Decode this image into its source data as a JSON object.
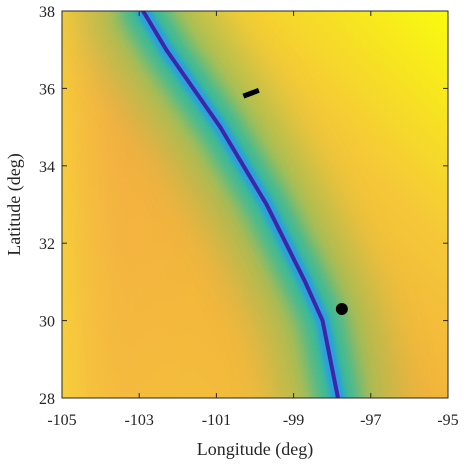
{
  "chart_data": {
    "type": "heatmap",
    "title": "",
    "xlabel": "Longitude (deg)",
    "ylabel": "Latitude (deg)",
    "xlim": [
      -105,
      -95
    ],
    "ylim": [
      28,
      38
    ],
    "xticks": [
      -105,
      -103,
      -101,
      -99,
      -97,
      -95
    ],
    "yticks": [
      28,
      30,
      32,
      34,
      36,
      38
    ],
    "x_tick_labels": [
      "-105",
      "-103",
      "-101",
      "-99",
      "-97",
      "-95"
    ],
    "y_tick_labels": [
      "28",
      "30",
      "32",
      "34",
      "36",
      "38"
    ],
    "colormap": "parula",
    "colors": {
      "minimum": "#3e26a8",
      "low": "#2b9fde",
      "mid": "#35b99d",
      "high": "#f7ac39",
      "maximum": "#f9fb0e",
      "markers": "#000000"
    },
    "minimum_curve": {
      "x": [
        -102.9,
        -102.3,
        -101.6,
        -100.9,
        -100.3,
        -99.7,
        -99.2,
        -98.7,
        -98.25,
        -97.85
      ],
      "y": [
        38.0,
        37.0,
        36.0,
        35.0,
        34.0,
        33.0,
        32.0,
        31.0,
        30.0,
        28.0
      ]
    },
    "markers": [
      {
        "shape": "dash",
        "x": [
          -100.3,
          -99.9
        ],
        "y": [
          35.8,
          35.95
        ]
      },
      {
        "shape": "dot",
        "x": -97.75,
        "y": 30.3
      }
    ],
    "grid": false
  }
}
